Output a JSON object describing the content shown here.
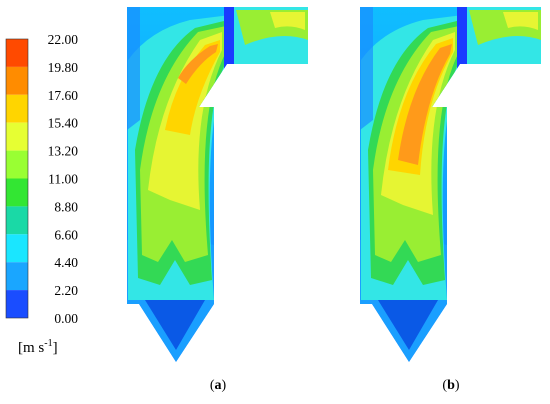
{
  "colorbar": {
    "ticks": [
      "22.00",
      "19.80",
      "17.60",
      "15.40",
      "13.20",
      "11.00",
      "8.80",
      "6.60",
      "4.40",
      "2.20",
      "0.00"
    ],
    "colors": [
      "#ff4a00",
      "#ff8c00",
      "#ffd500",
      "#e6ff33",
      "#99ff33",
      "#33e633",
      "#1ad9a6",
      "#1ae6ff",
      "#1aa6ff",
      "#1a4dff"
    ],
    "unit_base": "[m s",
    "unit_exp": "-1",
    "unit_close": "]"
  },
  "panels": [
    {
      "letter": "a",
      "open": "(",
      "close": ")"
    },
    {
      "letter": "b",
      "open": "(",
      "close": ")"
    }
  ]
}
